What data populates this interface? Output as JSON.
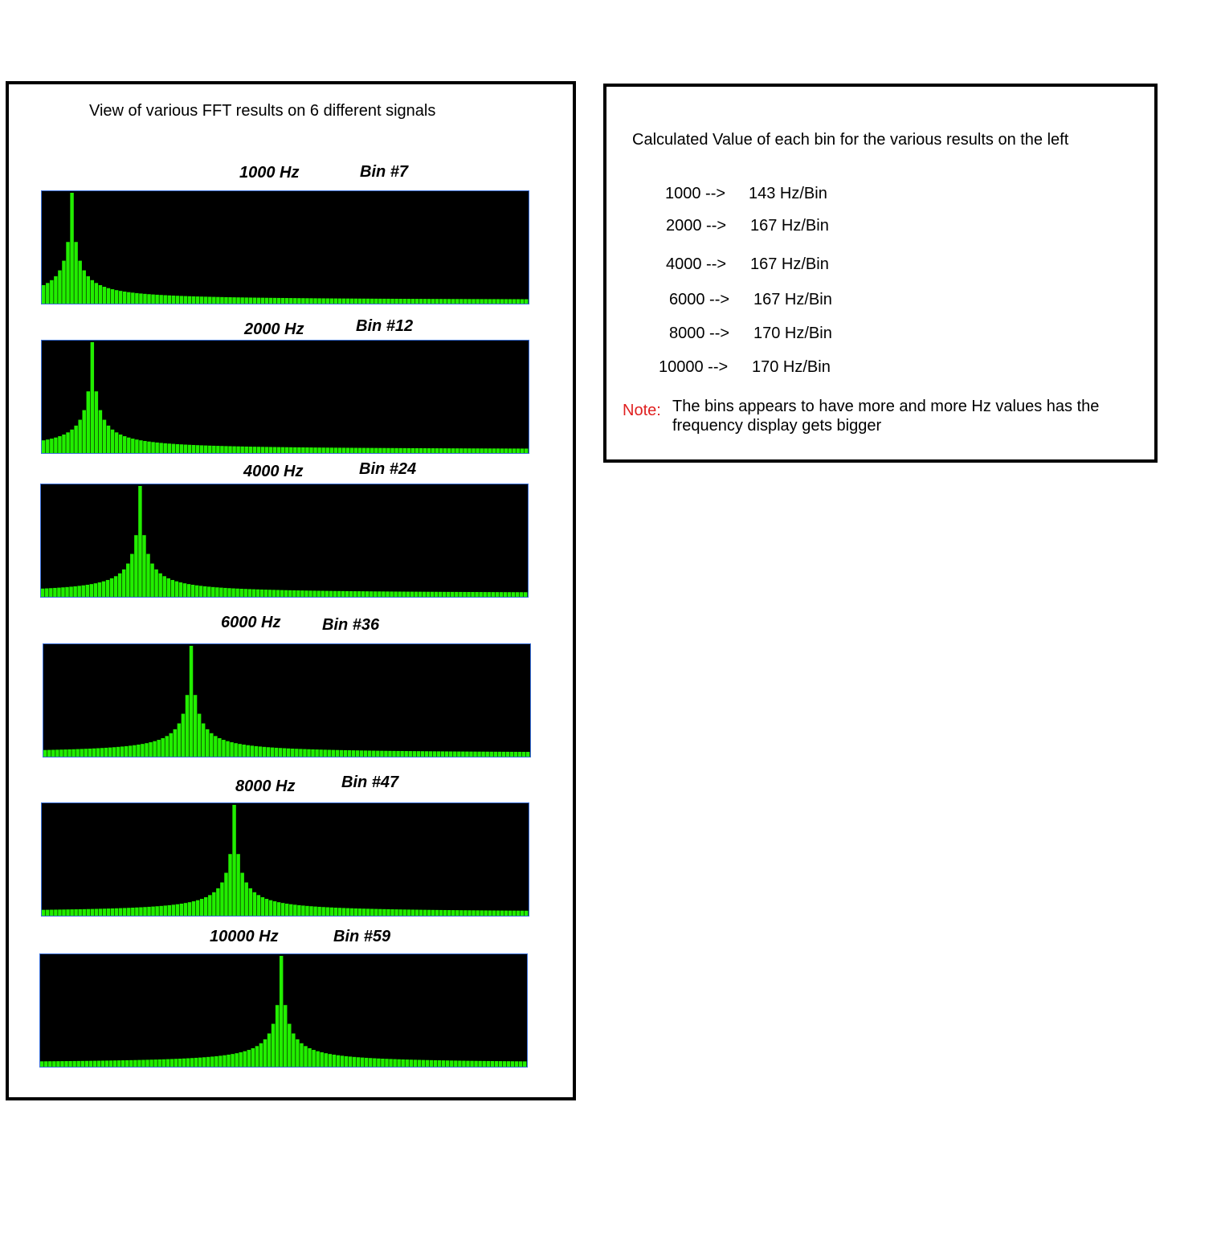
{
  "left_title": "View of various FFT results on 6 different signals",
  "right_title": "Calculated Value of each bin for the various results on the left",
  "rows": [
    {
      "freq": "1000 -->",
      "val": "143 Hz/Bin"
    },
    {
      "freq": "2000 -->",
      "val": "167 Hz/Bin"
    },
    {
      "freq": "4000 -->",
      "val": "167 Hz/Bin"
    },
    {
      "freq": "6000 -->",
      "val": "167 Hz/Bin"
    },
    {
      "freq": "8000 -->",
      "val": "170 Hz/Bin"
    },
    {
      "freq": "10000 -->",
      "val": "170 Hz/Bin"
    }
  ],
  "note": {
    "label": "Note:",
    "text": "The bins appears to have more and more Hz values has the frequency display gets bigger"
  },
  "colors": {
    "bar": "#22ee00",
    "background": "#000000",
    "frame": "#3a6fd8",
    "note": "#e02020"
  },
  "chart_data": [
    {
      "type": "bar",
      "freq_label": "1000 Hz",
      "bin_label": "Bin #7",
      "peak_bin": 7,
      "bins": 120
    },
    {
      "type": "bar",
      "freq_label": "2000 Hz",
      "bin_label": "Bin #12",
      "peak_bin": 12,
      "bins": 120
    },
    {
      "type": "bar",
      "freq_label": "4000 Hz",
      "bin_label": "Bin #24",
      "peak_bin": 24,
      "bins": 120
    },
    {
      "type": "bar",
      "freq_label": "6000 Hz",
      "bin_label": "Bin #36",
      "peak_bin": 36,
      "bins": 120
    },
    {
      "type": "bar",
      "freq_label": "8000 Hz",
      "bin_label": "Bin #47",
      "peak_bin": 47,
      "bins": 120
    },
    {
      "type": "bar",
      "freq_label": "10000 Hz",
      "bin_label": "Bin #59",
      "peak_bin": 59,
      "bins": 120
    }
  ]
}
